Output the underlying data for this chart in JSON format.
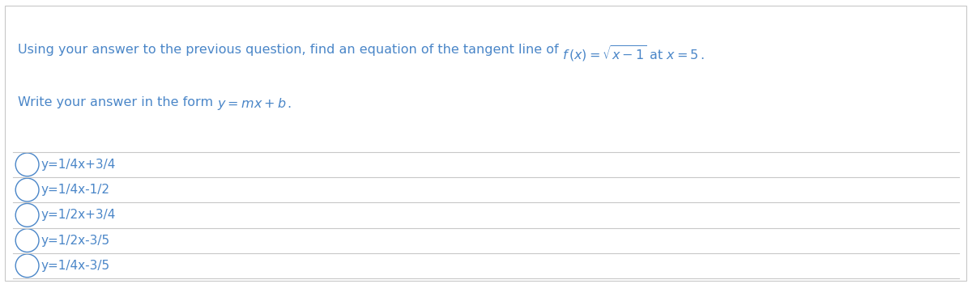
{
  "background_color": "#ffffff",
  "border_color": "#c8c8c8",
  "options": [
    "y=1/4x+3/4",
    "y=1/4x-1/2",
    "y=1/2x+3/4",
    "y=1/2x-3/5",
    "y=1/4x-3/5"
  ],
  "text_color": "#4a86c8",
  "divider_color": "#c8c8c8",
  "circle_color": "#4a86c8",
  "fig_width": 12.0,
  "fig_height": 3.51,
  "question_fontsize": 11.5,
  "option_fontsize": 11.0
}
